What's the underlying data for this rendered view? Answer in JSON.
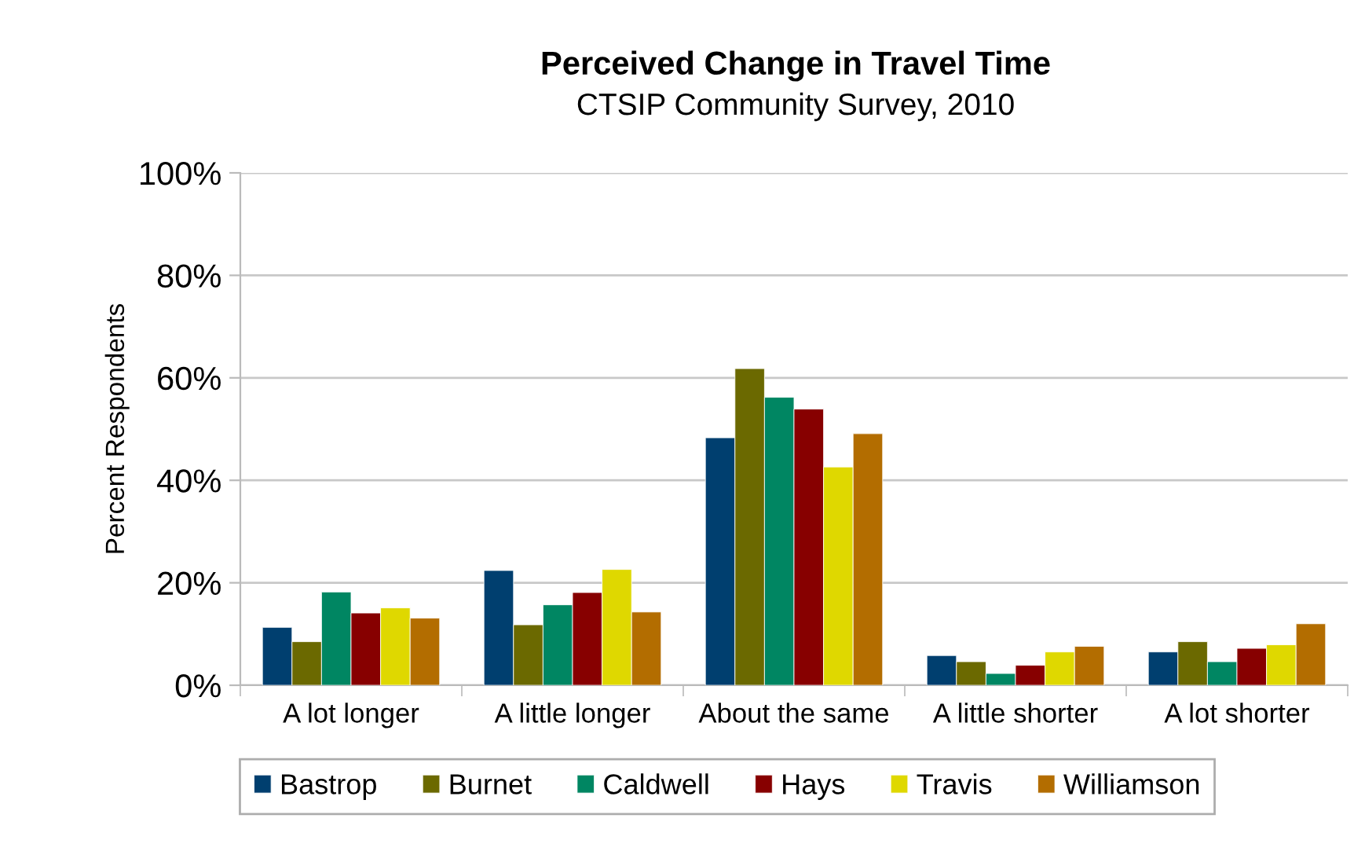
{
  "chart_data": {
    "type": "bar",
    "title": "Perceived Change in Travel Time",
    "subtitle": "CTSIP Community Survey, 2010",
    "ylabel": "Percent Respondents",
    "categories": [
      "A lot longer",
      "A little longer",
      "About the same",
      "A little shorter",
      "A lot shorter"
    ],
    "series": [
      {
        "name": "Bastrop",
        "color": "#003f6f",
        "values": [
          11.3,
          22.4,
          48.3,
          5.8,
          6.5
        ]
      },
      {
        "name": "Burnet",
        "color": "#6b6900",
        "values": [
          8.5,
          11.8,
          61.8,
          4.6,
          8.5
        ]
      },
      {
        "name": "Caldwell",
        "color": "#008662",
        "values": [
          18.2,
          15.7,
          56.2,
          2.3,
          4.6
        ]
      },
      {
        "name": "Hays",
        "color": "#870000",
        "values": [
          14.1,
          18.1,
          53.9,
          3.9,
          7.2
        ]
      },
      {
        "name": "Travis",
        "color": "#dfd800",
        "values": [
          15.1,
          22.6,
          42.6,
          6.5,
          7.9
        ]
      },
      {
        "name": "Williamson",
        "color": "#b36d00",
        "values": [
          13.1,
          14.3,
          49.1,
          7.6,
          12.0
        ]
      }
    ],
    "ylim": [
      0,
      100
    ],
    "yticks": [
      {
        "value": 0,
        "label": "0%"
      },
      {
        "value": 20,
        "label": "20%"
      },
      {
        "value": 40,
        "label": "40%"
      },
      {
        "value": 60,
        "label": "60%"
      },
      {
        "value": 80,
        "label": "80%"
      },
      {
        "value": 100,
        "label": "100%"
      }
    ],
    "grid": "y",
    "legend": "bottom"
  }
}
